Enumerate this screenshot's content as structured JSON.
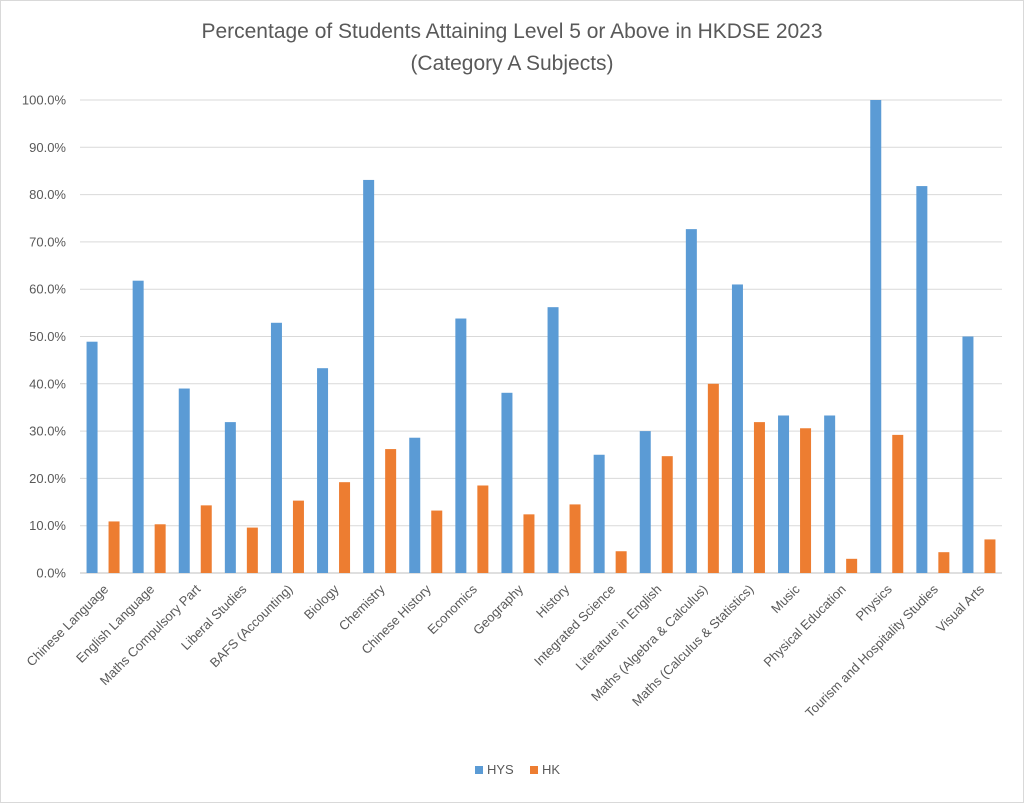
{
  "chart_data": {
    "type": "bar",
    "title": "Percentage of Students Attaining Level 5 or Above in HKDSE 2023",
    "subtitle": "(Category A Subjects)",
    "xlabel": "",
    "ylabel": "",
    "ylim": [
      0,
      100
    ],
    "y_ticks": [
      "0.0%",
      "10.0%",
      "20.0%",
      "30.0%",
      "40.0%",
      "50.0%",
      "60.0%",
      "70.0%",
      "80.0%",
      "90.0%",
      "100.0%"
    ],
    "grid": true,
    "legend_position": "bottom",
    "categories": [
      "Chinese Language",
      "English Language",
      "Maths Compulsory Part",
      "Liberal Studies",
      "BAFS (Accounting)",
      "Biology",
      "Chemistry",
      "Chinese History",
      "Economics",
      "Geography",
      "History",
      "Integrated Science",
      "Literature in English",
      "Maths (Algebra & Calculus)",
      "Maths (Calculus & Statistics)",
      "Music",
      "Physical Education",
      "Physics",
      "Tourism and Hospitality Studies",
      "Visual Arts"
    ],
    "series": [
      {
        "name": "HYS",
        "color": "#5B9BD5",
        "values": [
          48.9,
          61.8,
          39.0,
          31.9,
          52.9,
          43.3,
          83.1,
          28.6,
          53.8,
          38.1,
          56.2,
          25.0,
          30.0,
          72.7,
          61.0,
          33.3,
          33.3,
          100.0,
          81.8,
          50.0
        ]
      },
      {
        "name": "HK",
        "color": "#ED7D31",
        "values": [
          10.9,
          10.3,
          14.3,
          9.6,
          15.3,
          19.2,
          26.2,
          13.2,
          18.5,
          12.4,
          14.5,
          4.6,
          24.7,
          40.0,
          31.9,
          30.6,
          3.0,
          29.2,
          4.4,
          7.1
        ]
      }
    ]
  }
}
